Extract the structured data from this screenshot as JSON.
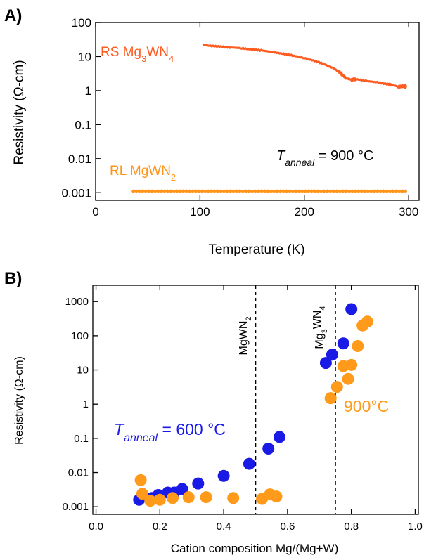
{
  "chart_data": [
    {
      "panel": "A)",
      "type": "line",
      "xlabel": "Temperature (K)",
      "ylabel": "Resistivity (Ω-cm)",
      "xlim": [
        0,
        310
      ],
      "ylim": [
        0.0006,
        100
      ],
      "yscale": "log",
      "x_ticks": [
        0,
        100,
        200,
        300
      ],
      "y_ticks": [
        {
          "value": 0.001,
          "label": "0.001"
        },
        {
          "value": 0.01,
          "label": "0.01"
        },
        {
          "value": 0.1,
          "label": "0.1"
        },
        {
          "value": 1,
          "label": "1"
        },
        {
          "value": 10,
          "label": "10"
        },
        {
          "value": 100,
          "label": "100"
        }
      ],
      "annotation_main": "T",
      "annotation_sub": "anneal",
      "annotation_rest": " = 900 °C",
      "series": [
        {
          "name_main": "RS Mg",
          "name_sub1": "3",
          "name_mid": "WN",
          "name_sub2": "4",
          "color": "#ff5a1f",
          "x": [
            103,
            110,
            120,
            130,
            140,
            150,
            160,
            170,
            180,
            190,
            200,
            210,
            220,
            228,
            233,
            237,
            240,
            245,
            250,
            260,
            270,
            280,
            285,
            290,
            295,
            298
          ],
          "y": [
            22,
            20.5,
            19.5,
            18.5,
            17.5,
            16,
            15,
            13.5,
            12,
            10.5,
            9,
            7.5,
            5.8,
            4.5,
            3.6,
            2.8,
            2.3,
            2.1,
            2.15,
            1.9,
            1.75,
            1.55,
            1.45,
            1.3,
            1.35,
            1.3
          ]
        },
        {
          "name_main": "RL MgWN",
          "name_sub1": "2",
          "name_mid": "",
          "name_sub2": "",
          "color": "#ff9419",
          "x": [
            36,
            60,
            100,
            150,
            200,
            250,
            298
          ],
          "y": [
            0.0011,
            0.0011,
            0.0011,
            0.0011,
            0.0011,
            0.0011,
            0.0011
          ]
        }
      ]
    },
    {
      "panel": "B)",
      "type": "scatter",
      "xlabel": "Cation composition Mg/(Mg+W)",
      "ylabel": "Resistivity (Ω-cm)",
      "xlim": [
        -0.01,
        1.01
      ],
      "ylim": [
        0.0006,
        3000
      ],
      "yscale": "log",
      "x_ticks": [
        {
          "value": 0.0,
          "label": "0.0"
        },
        {
          "value": 0.2,
          "label": "0.2"
        },
        {
          "value": 0.4,
          "label": "0.4"
        },
        {
          "value": 0.6,
          "label": "0.6"
        },
        {
          "value": 0.8,
          "label": "0.8"
        },
        {
          "value": 1.0,
          "label": "1.0"
        }
      ],
      "y_ticks": [
        {
          "value": 0.001,
          "label": "0.001"
        },
        {
          "value": 0.01,
          "label": "0.01"
        },
        {
          "value": 0.1,
          "label": "0.1"
        },
        {
          "value": 1,
          "label": "1"
        },
        {
          "value": 10,
          "label": "10"
        },
        {
          "value": 100,
          "label": "100"
        },
        {
          "value": 1000,
          "label": "1000"
        }
      ],
      "vlines": [
        {
          "x": 0.5,
          "label_main": "MgWN",
          "label_sub": "2",
          "label_post": ""
        },
        {
          "x": 0.75,
          "label_main": "Mg",
          "label_sub": "3",
          "label_post": "WN",
          "label_sub2": "4"
        }
      ],
      "series": [
        {
          "ann_main": "T",
          "ann_sub": "anneal",
          "ann_rest": " = 600 °C",
          "color": "#1a1ae6",
          "x": [
            0.135,
            0.175,
            0.195,
            0.225,
            0.245,
            0.27,
            0.32,
            0.4,
            0.48,
            0.54,
            0.575,
            0.72,
            0.74,
            0.775,
            0.8
          ],
          "y": [
            0.0016,
            0.0018,
            0.0022,
            0.0026,
            0.0026,
            0.0033,
            0.0048,
            0.008,
            0.018,
            0.05,
            0.11,
            16,
            28,
            60,
            600
          ]
        },
        {
          "ann_main": "900°C",
          "ann_sub": "",
          "ann_rest": "",
          "color": "#ff9a1a",
          "x": [
            0.14,
            0.145,
            0.17,
            0.2,
            0.24,
            0.29,
            0.345,
            0.43,
            0.52,
            0.545,
            0.565,
            0.735,
            0.755,
            0.775,
            0.79,
            0.8,
            0.82,
            0.835,
            0.85
          ],
          "y": [
            0.006,
            0.0024,
            0.0015,
            0.0016,
            0.0018,
            0.0019,
            0.0019,
            0.0018,
            0.0017,
            0.0023,
            0.002,
            1.5,
            3.2,
            13,
            5.5,
            14,
            50,
            200,
            260
          ]
        }
      ]
    }
  ]
}
